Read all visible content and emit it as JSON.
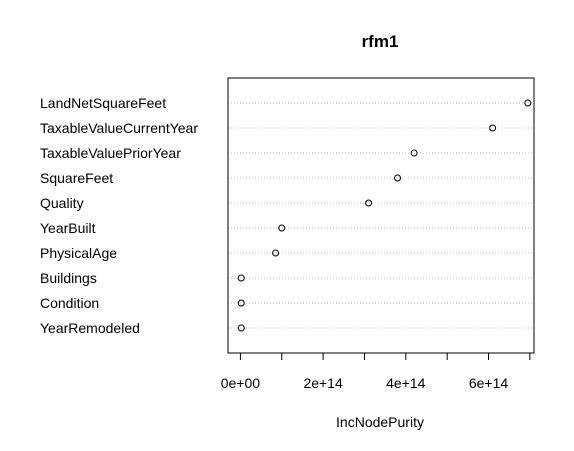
{
  "chart_data": {
    "type": "scatter",
    "subtype": "dotchart",
    "title": "rfm1",
    "xlabel": "IncNodePurity",
    "ylabel": "",
    "xlim": [
      -30000000000000.0,
      710000000000000.0
    ],
    "xticks": [
      0,
      200000000000000.0,
      400000000000000.0,
      600000000000000.0
    ],
    "xtick_labels": [
      "0e+00",
      "2e+14",
      "4e+14",
      "6e+14"
    ],
    "grid": "dotted horizontal",
    "categories": [
      "LandNetSquareFeet",
      "TaxableValueCurrentYear",
      "TaxableValuePriorYear",
      "SquareFeet",
      "Quality",
      "YearBuilt",
      "PhysicalAge",
      "Buildings",
      "Condition",
      "YearRemodeled"
    ],
    "values": [
      695000000000000.0,
      610000000000000.0,
      420000000000000.0,
      380000000000000.0,
      310000000000000.0,
      100000000000000.0,
      85000000000000.0,
      2000000000000.0,
      2000000000000.0,
      2000000000000.0
    ]
  }
}
